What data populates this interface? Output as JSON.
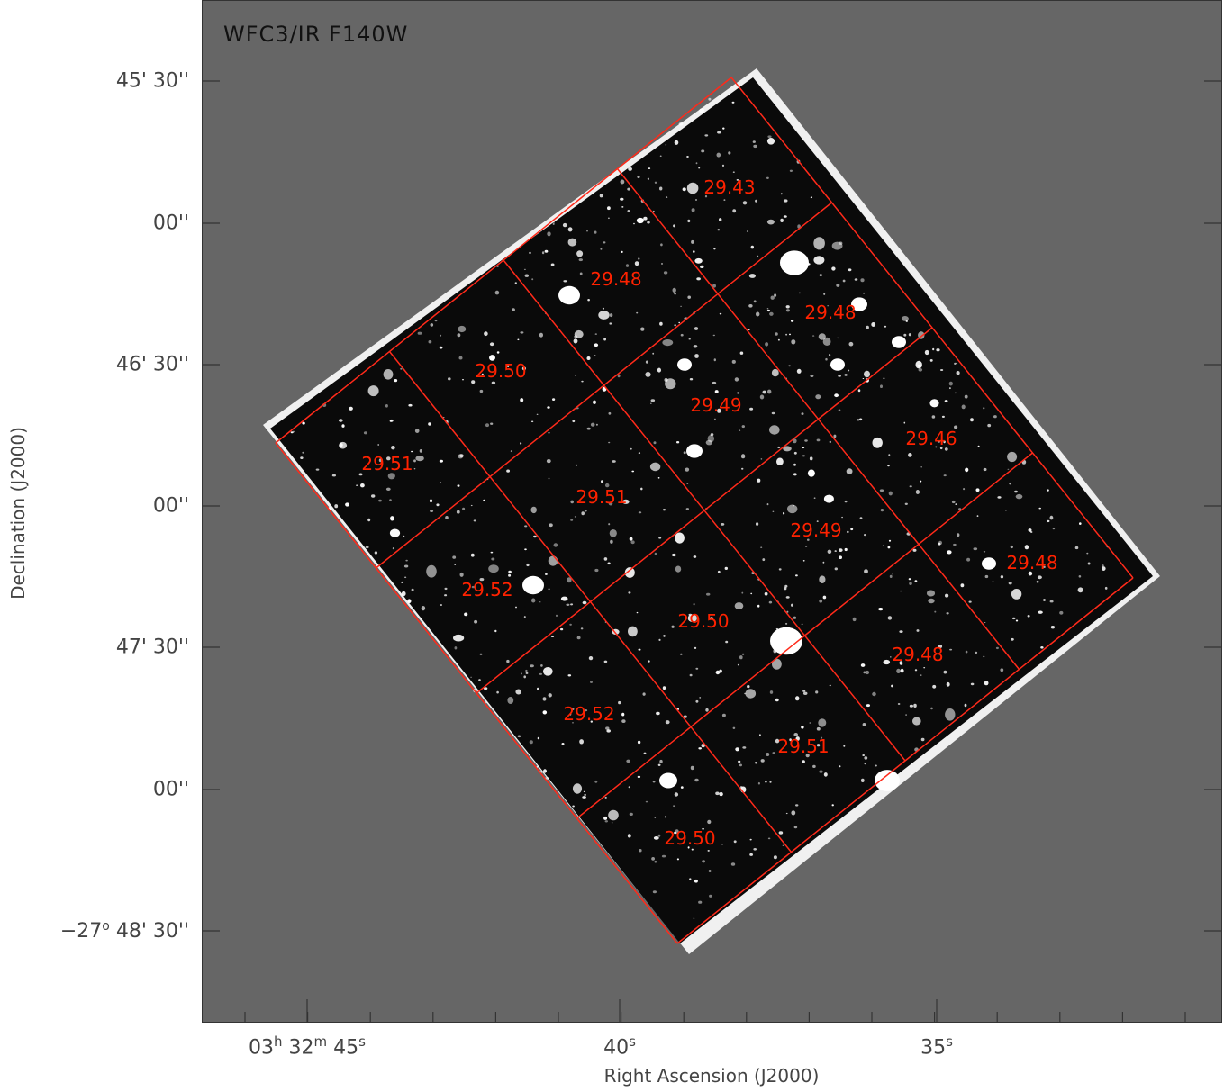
{
  "image_title": "WFC3/IR F140W",
  "axis_labels": {
    "x": "Right Ascension (J2000)",
    "y": "Declination (J2000)"
  },
  "dec_ticks": [
    {
      "text": "45' 30''"
    },
    {
      "text": "00''"
    },
    {
      "text": "46' 30''"
    },
    {
      "text": "00''"
    },
    {
      "text": "47' 30''"
    },
    {
      "text": "00''"
    },
    {
      "text": "−27° 48' 30''"
    }
  ],
  "ra_ticks": [
    {
      "text": "03h 32m 45s"
    },
    {
      "text": "40s"
    },
    {
      "text": "35s"
    }
  ],
  "tile_depths": [
    "29.43",
    "29.48",
    "29.48",
    "29.50",
    "29.49",
    "29.46",
    "29.51",
    "29.51",
    "29.49",
    "29.48",
    "29.52",
    "29.50",
    "29.48",
    "29.52",
    "29.51",
    "29.50"
  ],
  "colors": {
    "background": "#666666",
    "mosaic": "#0a0a0a",
    "grid_lines": "#ff2a1a",
    "depth_labels": "#ff2200"
  }
}
